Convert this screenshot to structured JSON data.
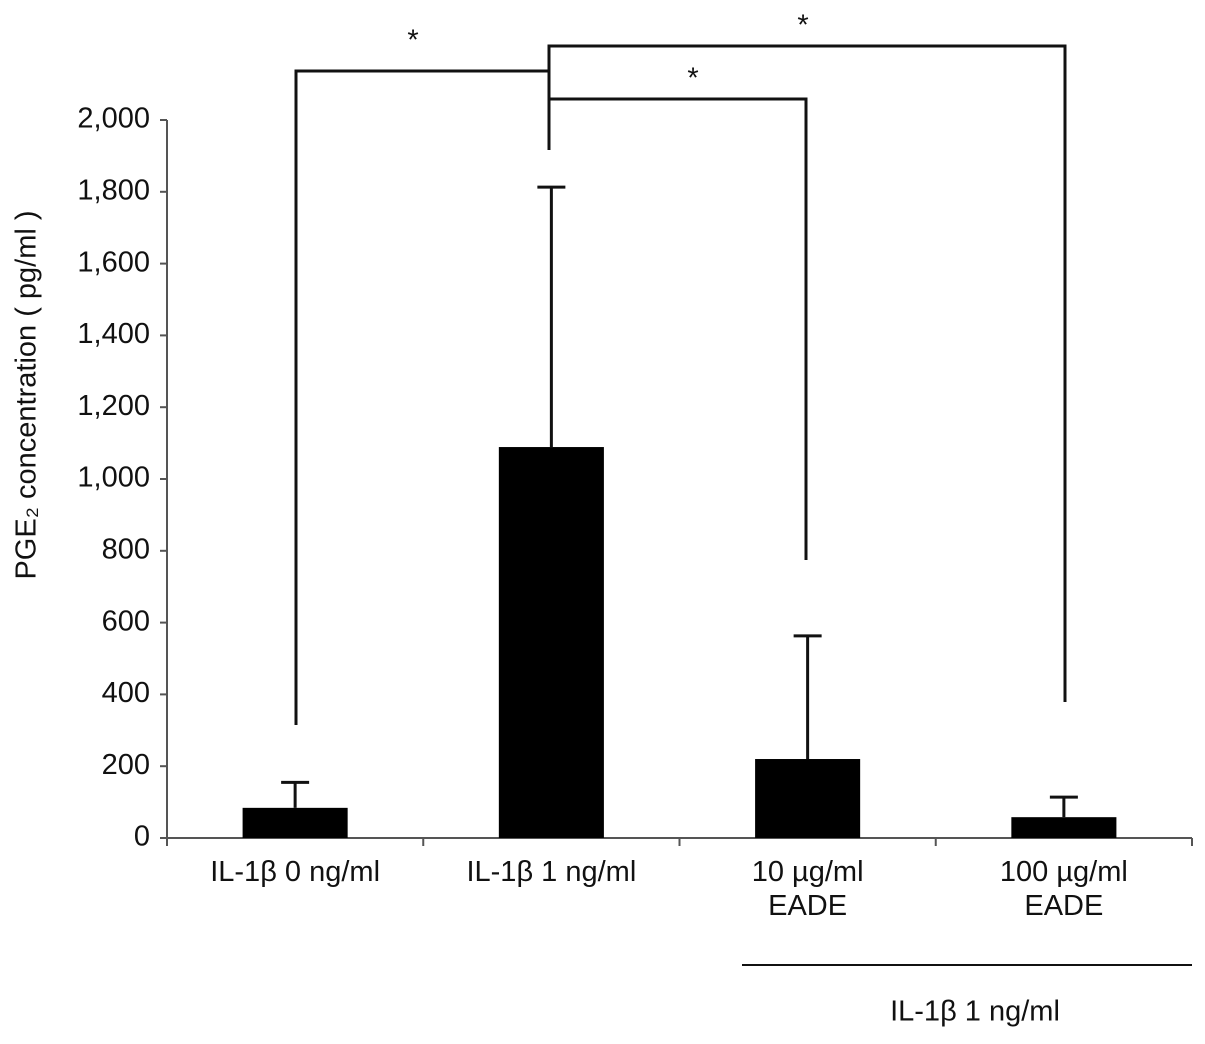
{
  "chart_data": {
    "type": "bar",
    "y_label": "PGE₂ concentration ( pg/ml )",
    "categories": [
      "IL-1β 0 ng/ml",
      "IL-1β 1 ng/ml",
      "10 µg/ml\nEADE",
      "100 µg/ml\nEADE"
    ],
    "values": [
      84,
      1089,
      220,
      58
    ],
    "errors": [
      71,
      724,
      343,
      56
    ],
    "color": "#000000",
    "ylim": [
      0,
      2000
    ],
    "yticks": [
      0,
      200,
      400,
      600,
      800,
      {
        "value": 1000,
        "label": "1,000"
      },
      {
        "value": 1200,
        "label": "1,200"
      },
      {
        "value": 1400,
        "label": "1,400"
      },
      {
        "value": 1600,
        "label": "1,600"
      },
      {
        "value": 1800,
        "label": "1,800"
      },
      {
        "value": 2000,
        "label": "2,000"
      }
    ],
    "group_label": "IL-1β 1 ng/ml",
    "annotations": [
      "*",
      "*",
      "*"
    ]
  }
}
